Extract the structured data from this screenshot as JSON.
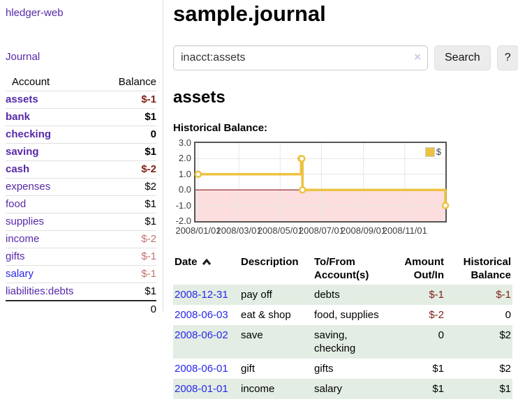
{
  "sidebar": {
    "brand": "hledger-web",
    "nav": {
      "journal": "Journal"
    },
    "accounts": {
      "headers": {
        "account": "Account",
        "balance": "Balance"
      },
      "rows": [
        {
          "name": "assets",
          "indent": 1,
          "bold": true,
          "balance": "$-1",
          "balance_style": "neg-strong"
        },
        {
          "name": "bank",
          "indent": 2,
          "bold": true,
          "balance": "$1",
          "balance_style": "normal"
        },
        {
          "name": "checking",
          "indent": 3,
          "bold": true,
          "balance": "0",
          "balance_style": "normal"
        },
        {
          "name": "saving",
          "indent": 3,
          "bold": true,
          "balance": "$1",
          "balance_style": "normal"
        },
        {
          "name": "cash",
          "indent": 2,
          "bold": true,
          "balance": "$-2",
          "balance_style": "neg-strong"
        },
        {
          "name": "expenses",
          "indent": 1,
          "bold": false,
          "balance": "$2",
          "balance_style": "normal"
        },
        {
          "name": "food",
          "indent": 2,
          "bold": false,
          "balance": "$1",
          "balance_style": "normal"
        },
        {
          "name": "supplies",
          "indent": 2,
          "bold": false,
          "balance": "$1",
          "balance_style": "normal"
        },
        {
          "name": "income",
          "indent": 1,
          "bold": false,
          "balance": "$-2",
          "balance_style": "neg-soft"
        },
        {
          "name": "gifts",
          "indent": 2,
          "bold": false,
          "balance": "$-1",
          "balance_style": "neg-soft"
        },
        {
          "name": "salary",
          "indent": 2,
          "bold": false,
          "balance": "$-1",
          "balance_style": "neg-soft",
          "link_color": "blue"
        },
        {
          "name": "liabilities:debts",
          "indent": 1,
          "bold": false,
          "balance": "$1",
          "balance_style": "normal"
        }
      ],
      "total": "0"
    }
  },
  "main": {
    "title": "sample.journal",
    "search": {
      "value": "inacct:assets",
      "clear": "×",
      "search_button": "Search",
      "help_button": "?"
    },
    "account_title": "assets",
    "section_label": "Historical Balance:"
  },
  "chart_data": {
    "type": "line",
    "title": "Historical Balance:",
    "xlabel": "",
    "ylabel": "",
    "step": true,
    "grid": true,
    "grid_color": "#e6e6e6",
    "legend_position": "top-right",
    "x_range": [
      "2007/12/28",
      "2008/12/31"
    ],
    "ylim": [
      -2.0,
      3.0
    ],
    "y_ticks": [
      "3.0",
      "2.0",
      "1.0",
      "0.0",
      "-1.0",
      "-2.0"
    ],
    "x_ticks": [
      "2008/01/01",
      "2008/03/01",
      "2008/05/01",
      "2008/07/01",
      "2008/09/01",
      "2008/11/01"
    ],
    "zero_line_color": "#8b1a1a",
    "negative_region_fill": "#fcdede",
    "series": [
      {
        "name": "$",
        "color": "#edc240",
        "marker": "circle",
        "points": [
          [
            "2008/01/01",
            1
          ],
          [
            "2008/06/01",
            2
          ],
          [
            "2008/06/02",
            2
          ],
          [
            "2008/06/03",
            0
          ],
          [
            "2008/12/31",
            -1
          ]
        ]
      }
    ]
  },
  "register": {
    "headers": {
      "date": "Date",
      "description": "Description",
      "accounts": "To/From Account(s)",
      "amount": "Amount Out/In",
      "balance": "Historical Balance"
    },
    "sort": {
      "column": "Date",
      "direction": "ascending"
    },
    "rows": [
      {
        "date": "2008-12-31",
        "description": "pay off",
        "accounts": "debts",
        "amount": "$-1",
        "balance": "$-1",
        "shaded": true
      },
      {
        "date": "2008-06-03",
        "description": "eat & shop",
        "accounts": "food, supplies",
        "amount": "$-2",
        "balance": "0",
        "shaded": false
      },
      {
        "date": "2008-06-02",
        "description": "save",
        "accounts": "saving, checking",
        "amount": "0",
        "balance": "$2",
        "shaded": true
      },
      {
        "date": "2008-06-01",
        "description": "gift",
        "accounts": "gifts",
        "amount": "$1",
        "balance": "$2",
        "shaded": false
      },
      {
        "date": "2008-01-01",
        "description": "income",
        "accounts": "salary",
        "amount": "$1",
        "balance": "$1",
        "shaded": true
      }
    ]
  }
}
